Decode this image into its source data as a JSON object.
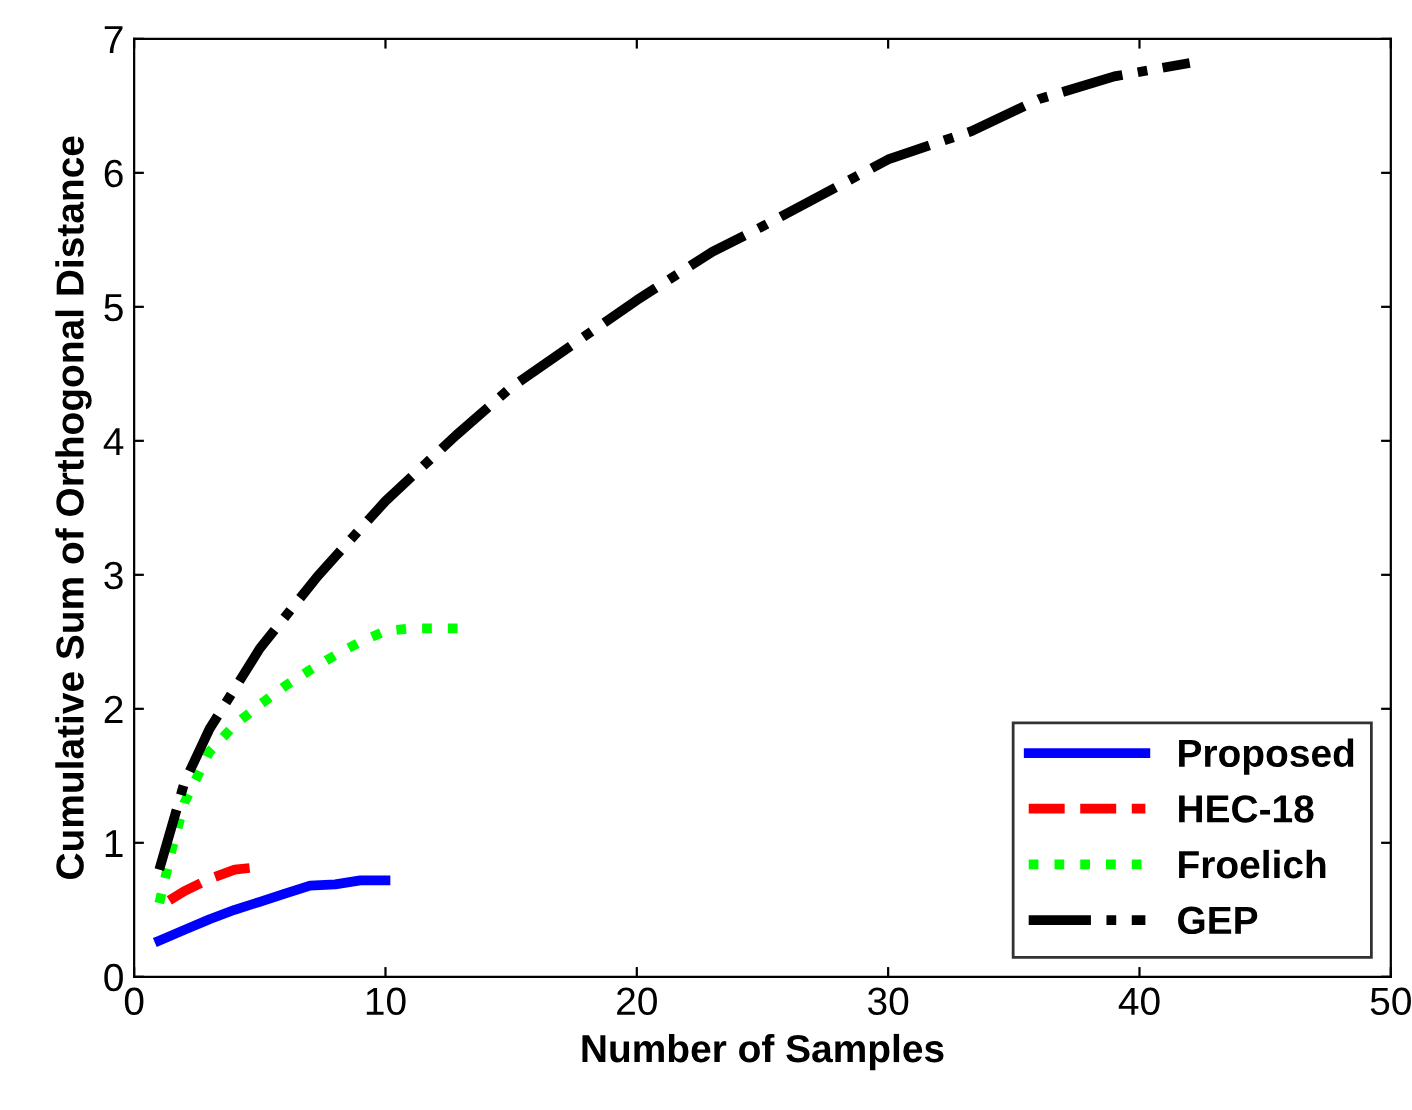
{
  "chart_data": {
    "type": "line",
    "xlabel": "Number of Samples",
    "ylabel": "Cumulative Sum of Orthogonal Distance",
    "xlim": [
      0,
      50
    ],
    "xticks": [
      0,
      10,
      20,
      30,
      40,
      50
    ],
    "ylim": [
      0,
      7
    ],
    "yticks": [
      0,
      1,
      2,
      3,
      4,
      5,
      6,
      7
    ],
    "grid": false,
    "legend": "bottom right",
    "marker": "none",
    "series": [
      {
        "name": "Proposed",
        "color": "#0000ff",
        "line_style": "solid",
        "x": [
          1,
          2,
          3,
          4,
          5,
          6,
          7,
          8,
          9,
          10
        ],
        "values": [
          0.27,
          0.35,
          0.43,
          0.5,
          0.56,
          0.62,
          0.68,
          0.69,
          0.72,
          0.72
        ]
      },
      {
        "name": "HEC-18",
        "color": "#ff0000",
        "line_style": "dashed",
        "x": [
          1.4,
          2,
          3,
          4,
          5
        ],
        "values": [
          0.57,
          0.64,
          0.73,
          0.8,
          0.82
        ]
      },
      {
        "name": "Froelich",
        "color": "#00ff00",
        "line_style": "dotted",
        "x": [
          1,
          1.5,
          2,
          3,
          4,
          5,
          6,
          7,
          8,
          9,
          10,
          11,
          13
        ],
        "values": [
          0.55,
          0.95,
          1.3,
          1.68,
          1.88,
          2.03,
          2.17,
          2.29,
          2.4,
          2.5,
          2.58,
          2.6,
          2.6
        ]
      },
      {
        "name": "GEP",
        "color": "#000000",
        "line_style": "dashdot",
        "x": [
          1,
          2,
          3,
          5,
          7.3,
          10,
          12.8,
          15,
          20,
          23,
          25,
          30,
          33.3,
          36,
          39,
          42
        ],
        "values": [
          0.8,
          1.45,
          1.85,
          2.45,
          2.99,
          3.55,
          4.04,
          4.4,
          5.05,
          5.41,
          5.6,
          6.1,
          6.31,
          6.55,
          6.72,
          6.82
        ]
      }
    ]
  }
}
